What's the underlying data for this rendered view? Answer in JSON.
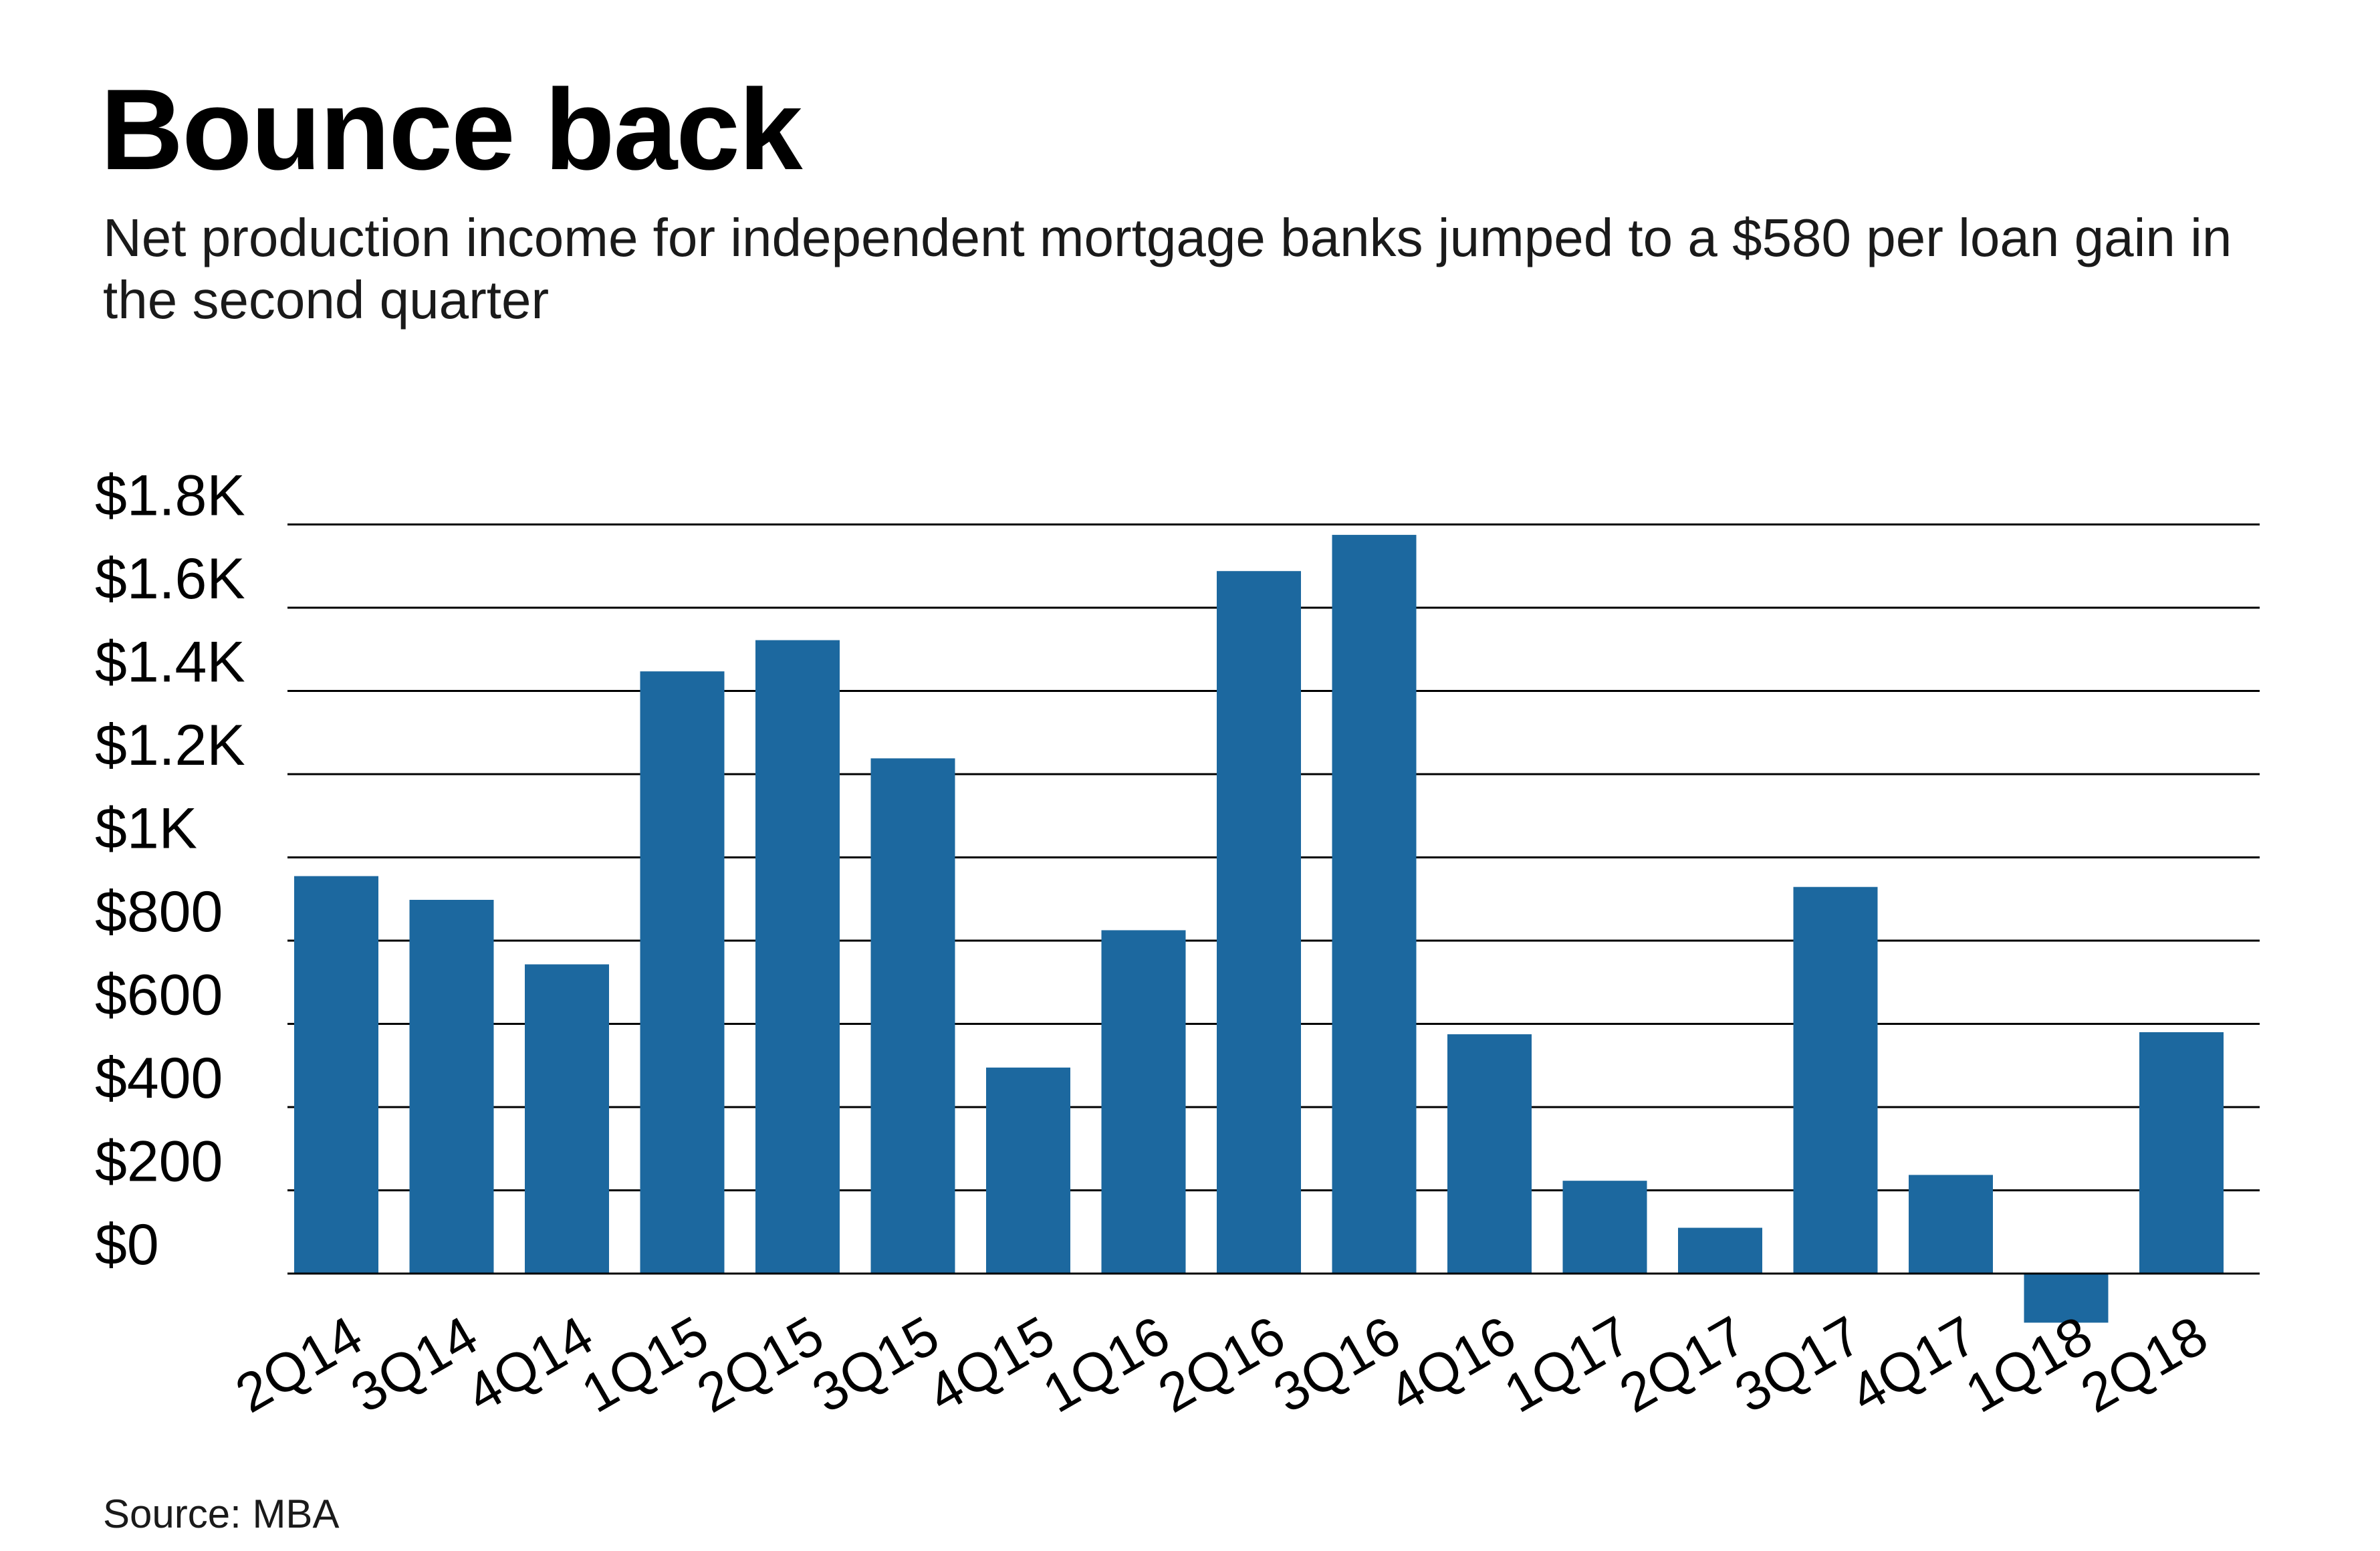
{
  "chart_data": {
    "type": "bar",
    "title": "Bounce back",
    "subtitle": "Net production income for independent mortgage banks jumped to a $580 per loan gain in the second quarter",
    "source": "Source: MBA",
    "categories": [
      "2Q14",
      "3Q14",
      "4Q14",
      "1Q15",
      "2Q15",
      "3Q15",
      "4Q15",
      "1Q16",
      "2Q16",
      "3Q16",
      "4Q16",
      "1Q17",
      "2Q17",
      "3Q17",
      "4Q17",
      "1Q18",
      "2Q18"
    ],
    "values": [
      955,
      898,
      743,
      1447,
      1522,
      1238,
      495,
      825,
      1688,
      1775,
      575,
      223,
      110,
      929,
      237,
      -118,
      580
    ],
    "y_ticks": [
      {
        "value": 0,
        "label": "$0"
      },
      {
        "value": 200,
        "label": "$200"
      },
      {
        "value": 400,
        "label": "$400"
      },
      {
        "value": 600,
        "label": "$600"
      },
      {
        "value": 800,
        "label": "$800"
      },
      {
        "value": 1000,
        "label": "$1K"
      },
      {
        "value": 1200,
        "label": "$1.2K"
      },
      {
        "value": 1400,
        "label": "$1.4K"
      },
      {
        "value": 1600,
        "label": "$1.6K"
      },
      {
        "value": 1800,
        "label": "$1.8K"
      }
    ],
    "ylim": [
      -150,
      1800
    ],
    "grid": true,
    "bar_color": "#1c689f",
    "gridline_color": "#000000",
    "xlabel": "",
    "ylabel": ""
  }
}
